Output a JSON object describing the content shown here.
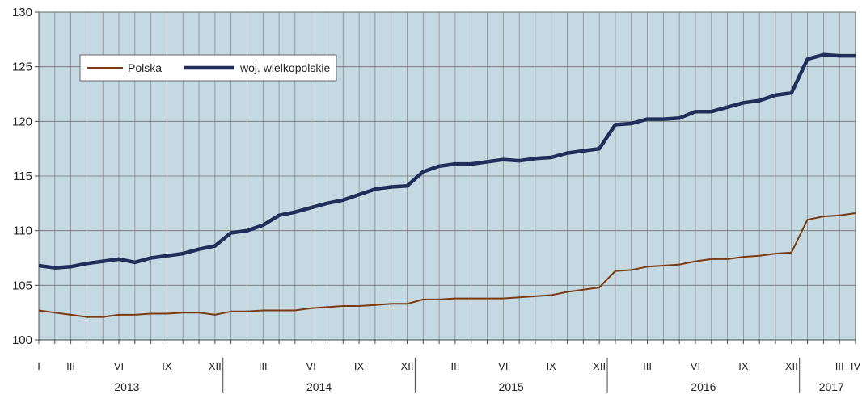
{
  "chart_data": {
    "type": "line",
    "title": "",
    "xlabel": "",
    "ylabel": "",
    "ylim": [
      100,
      130
    ],
    "yticks": [
      100,
      105,
      110,
      115,
      120,
      125,
      130
    ],
    "grid": true,
    "legend_position": "top-left",
    "background_color": "#c5d9e2",
    "x_labels": [
      {
        "index": 0,
        "label": "I"
      },
      {
        "index": 2,
        "label": "III"
      },
      {
        "index": 5,
        "label": "VI"
      },
      {
        "index": 8,
        "label": "IX"
      },
      {
        "index": 11,
        "label": "XII"
      },
      {
        "index": 14,
        "label": "III"
      },
      {
        "index": 17,
        "label": "VI"
      },
      {
        "index": 20,
        "label": "IX"
      },
      {
        "index": 23,
        "label": "XII"
      },
      {
        "index": 26,
        "label": "III"
      },
      {
        "index": 29,
        "label": "VI"
      },
      {
        "index": 32,
        "label": "IX"
      },
      {
        "index": 35,
        "label": "XII"
      },
      {
        "index": 38,
        "label": "III"
      },
      {
        "index": 41,
        "label": "VI"
      },
      {
        "index": 44,
        "label": "IX"
      },
      {
        "index": 47,
        "label": "XII"
      },
      {
        "index": 50,
        "label": "III"
      },
      {
        "index": 51,
        "label": "IV"
      }
    ],
    "years": [
      {
        "label": "2013",
        "start": 0,
        "end": 11
      },
      {
        "label": "2014",
        "start": 12,
        "end": 23
      },
      {
        "label": "2015",
        "start": 24,
        "end": 35
      },
      {
        "label": "2016",
        "start": 36,
        "end": 47
      },
      {
        "label": "2017",
        "start": 48,
        "end": 51
      }
    ],
    "series": [
      {
        "name": "Polska",
        "color": "#7a3b12",
        "values": [
          102.7,
          102.5,
          102.3,
          102.1,
          102.1,
          102.3,
          102.3,
          102.4,
          102.4,
          102.5,
          102.5,
          102.3,
          102.6,
          102.6,
          102.7,
          102.7,
          102.7,
          102.9,
          103.0,
          103.1,
          103.1,
          103.2,
          103.3,
          103.3,
          103.7,
          103.7,
          103.8,
          103.8,
          103.8,
          103.8,
          103.9,
          104.0,
          104.1,
          104.4,
          104.6,
          104.8,
          106.3,
          106.4,
          106.7,
          106.8,
          106.9,
          107.2,
          107.4,
          107.4,
          107.6,
          107.7,
          107.9,
          108.0,
          111.0,
          111.3,
          111.4,
          111.6
        ]
      },
      {
        "name": "woj. wielkopolskie",
        "color": "#1f2f5a",
        "values": [
          106.8,
          106.6,
          106.7,
          107.0,
          107.2,
          107.4,
          107.1,
          107.5,
          107.7,
          107.9,
          108.3,
          108.6,
          109.8,
          110.0,
          110.5,
          111.4,
          111.7,
          112.1,
          112.5,
          112.8,
          113.3,
          113.8,
          114.0,
          114.1,
          115.4,
          115.9,
          116.1,
          116.1,
          116.3,
          116.5,
          116.4,
          116.6,
          116.7,
          117.1,
          117.3,
          117.5,
          119.7,
          119.8,
          120.2,
          120.2,
          120.3,
          120.9,
          120.9,
          121.3,
          121.7,
          121.9,
          122.4,
          122.6,
          125.7,
          126.1,
          126.0,
          126.0
        ]
      }
    ]
  }
}
